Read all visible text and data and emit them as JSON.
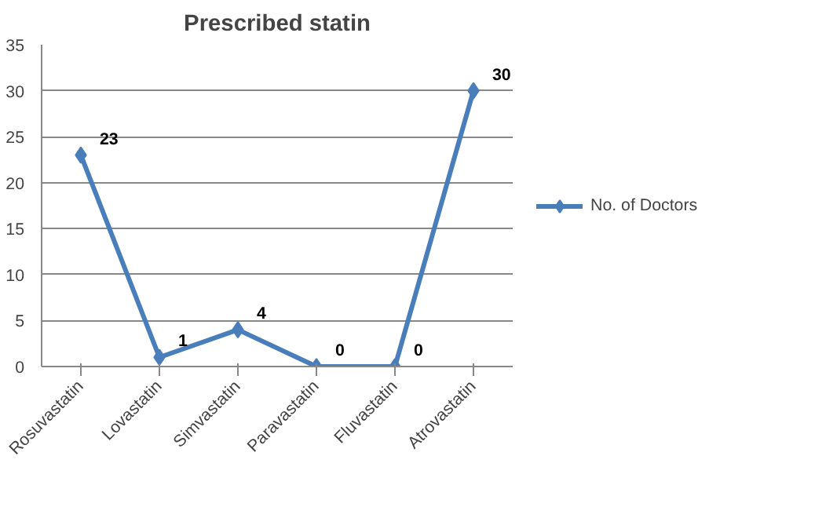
{
  "chart_data": {
    "type": "line",
    "title": "Prescribed statin",
    "categories": [
      "Rosuvastatin",
      "Lovastatin",
      "Simvastatin",
      "Paravastatin",
      "Fluvastatin",
      "Atrovastatin"
    ],
    "series": [
      {
        "name": "No. of Doctors",
        "color": "#4a7ebb",
        "values": [
          23,
          1,
          4,
          0,
          0,
          30
        ]
      }
    ],
    "ylim": [
      0,
      35
    ],
    "yticks": [
      0,
      5,
      10,
      15,
      20,
      25,
      30,
      35
    ],
    "grid": "y",
    "legend": "right",
    "marker": "diamond",
    "line_style": "solid",
    "data_labels": true
  }
}
